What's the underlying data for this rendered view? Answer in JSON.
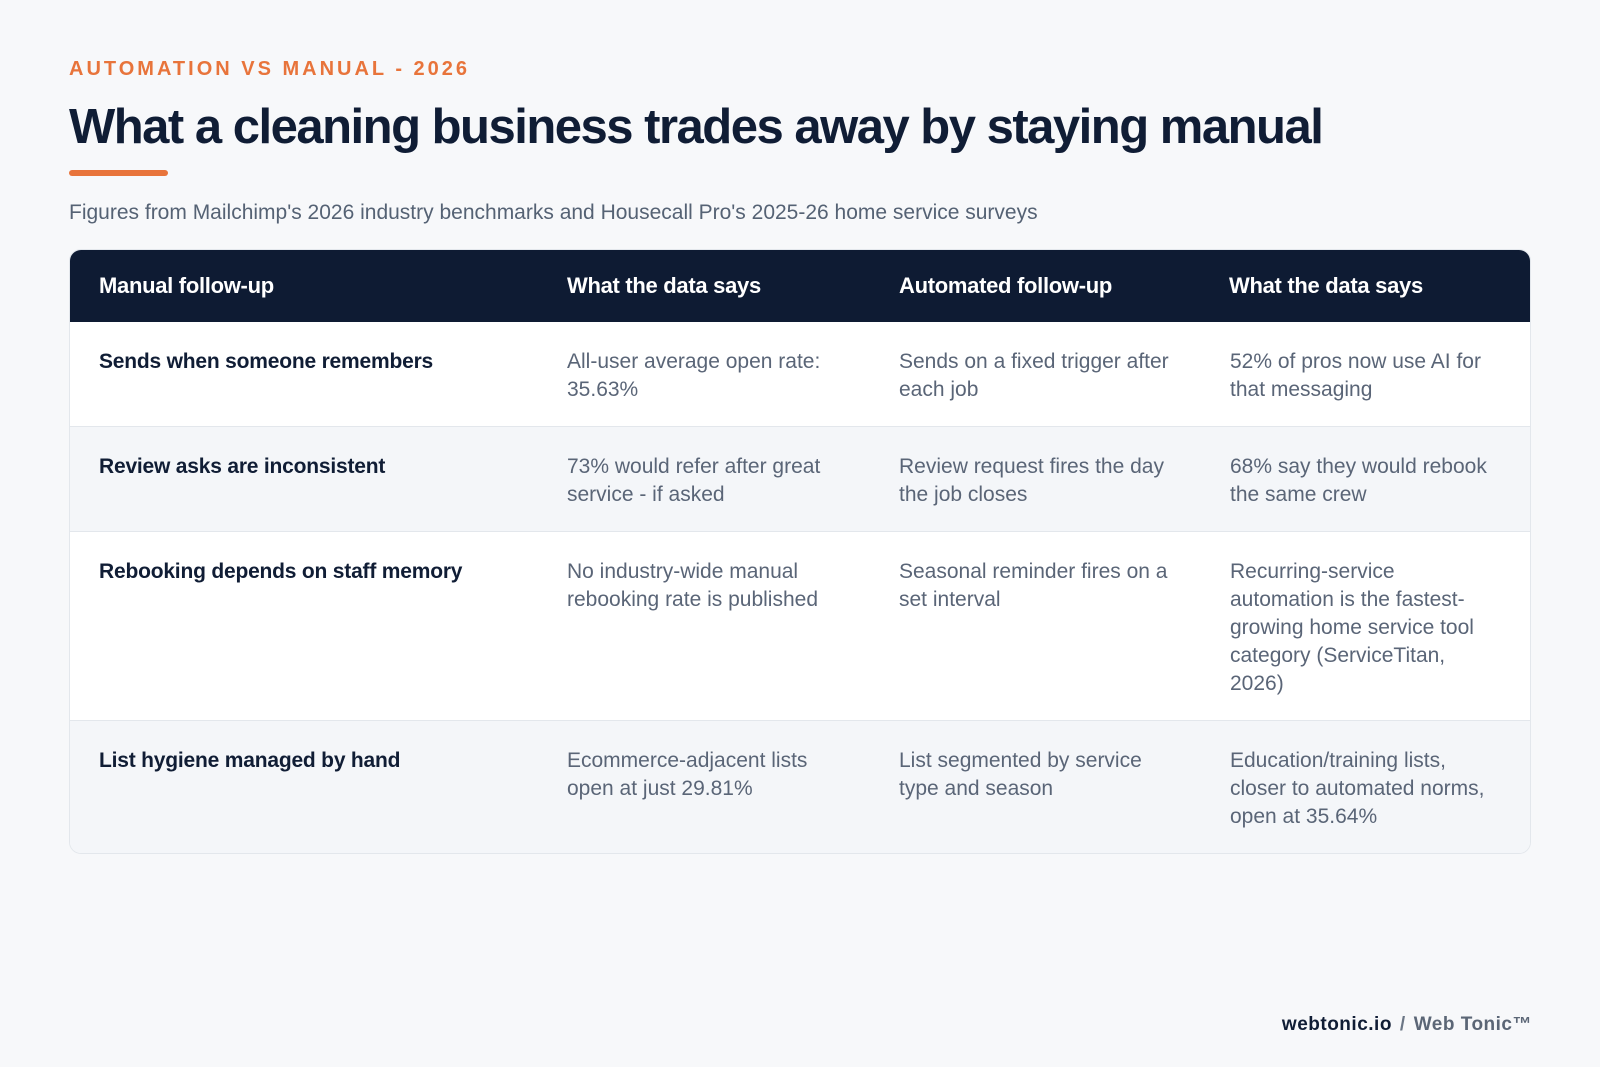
{
  "header": {
    "eyebrow": "AUTOMATION VS MANUAL - 2026",
    "title": "What a cleaning business trades away by staying manual",
    "subtitle": "Figures from Mailchimp's 2026 industry benchmarks and Housecall Pro's 2025-26 home service surveys"
  },
  "table": {
    "columns": [
      "Manual follow-up",
      "What the data says",
      "Automated follow-up",
      "What the data says"
    ],
    "rows": [
      [
        "Sends when someone remembers",
        "All-user average open rate: 35.63%",
        "Sends on a fixed trigger after each job",
        "52% of pros now use AI for that messaging"
      ],
      [
        "Review asks are inconsistent",
        "73% would refer after great service - if asked",
        "Review request fires the day the job closes",
        "68% say they would rebook the same crew"
      ],
      [
        "Rebooking depends on staff memory",
        "No industry-wide manual rebooking rate is published",
        "Seasonal reminder fires on a set interval",
        "Recurring-service automation is the fastest-growing home service tool category (ServiceTitan, 2026)"
      ],
      [
        "List hygiene managed by hand",
        "Ecommerce-adjacent lists open at just 29.81%",
        "List segmented by service type and season",
        "Education/training lists, closer to automated norms, open at 35.64%"
      ]
    ]
  },
  "footer": {
    "site": "webtonic.io",
    "separator": "/",
    "brand": "Web Tonic™"
  },
  "colors": {
    "accent": "#e8743b",
    "navy": "#0e1b33",
    "background": "#f7f8fa"
  }
}
